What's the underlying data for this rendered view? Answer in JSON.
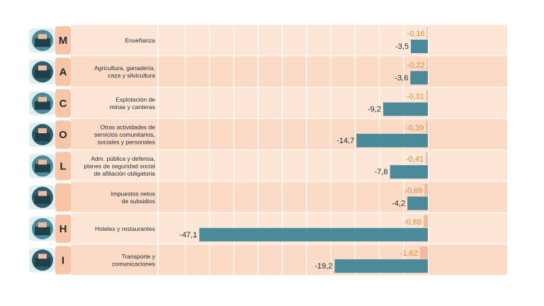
{
  "chart_data": {
    "type": "bar",
    "orientation": "horizontal",
    "xlim": [
      -47.1,
      3.2
    ],
    "grid": true,
    "colors": {
      "negative_bar": "#4a8a99",
      "positive_bar": "#f4b99a",
      "positive_text": "#e0893a",
      "row_light": "#fde6d6",
      "row_dark": "#fbdac6",
      "letter_box": "#f8c6a6"
    },
    "rows": [
      {
        "letter": "M",
        "label": [
          "Enseñanza"
        ],
        "icon": "school-icon",
        "top": "-0,16",
        "bottom": "-3,5",
        "top_value": -0.16,
        "bottom_value": -3.5
      },
      {
        "letter": "A",
        "label": [
          "Agricultura, ganadería,",
          "caza y silvicultura"
        ],
        "icon": "farmer-icon",
        "top": "-0,22",
        "bottom": "-3,6",
        "top_value": -0.22,
        "bottom_value": -3.6
      },
      {
        "letter": "C",
        "label": [
          "Explotación de",
          "minas y canteras"
        ],
        "icon": "oil-pump-icon",
        "top": "-0,31",
        "bottom": "-9,2",
        "top_value": -0.31,
        "bottom_value": -9.2
      },
      {
        "letter": "O",
        "label": [
          "Otras actividades de",
          "servicios comunitarios,",
          "sociales y personales"
        ],
        "icon": "community-services-icon",
        "top": "-0,39",
        "bottom": "-14,7",
        "top_value": -0.39,
        "bottom_value": -14.7
      },
      {
        "letter": "L",
        "label": [
          "Adm. pública y defensa,",
          "planes de seguridad social",
          "de afiliación obligatoria"
        ],
        "icon": "capitol-icon",
        "top": "-0,41",
        "bottom": "-7,8",
        "top_value": -0.41,
        "bottom_value": -7.8
      },
      {
        "letter": "",
        "label": [
          "Impuestos netos",
          "de subsidios"
        ],
        "icon": "tax-coins-icon",
        "top": "-0,69",
        "bottom": "-4,2",
        "top_value": -0.69,
        "bottom_value": -4.2
      },
      {
        "letter": "H",
        "label": [
          "Hoteles y restaurantes"
        ],
        "icon": "hotel-icon",
        "top": "-0,88",
        "bottom": "-47,1",
        "top_value": -0.88,
        "bottom_value": -47.1
      },
      {
        "letter": "I",
        "label": [
          "Transporte y",
          "comunicaciones"
        ],
        "icon": "transport-icon",
        "top": "-1,62",
        "bottom": "-19,2",
        "top_value": -1.62,
        "bottom_value": -19.2
      }
    ]
  }
}
